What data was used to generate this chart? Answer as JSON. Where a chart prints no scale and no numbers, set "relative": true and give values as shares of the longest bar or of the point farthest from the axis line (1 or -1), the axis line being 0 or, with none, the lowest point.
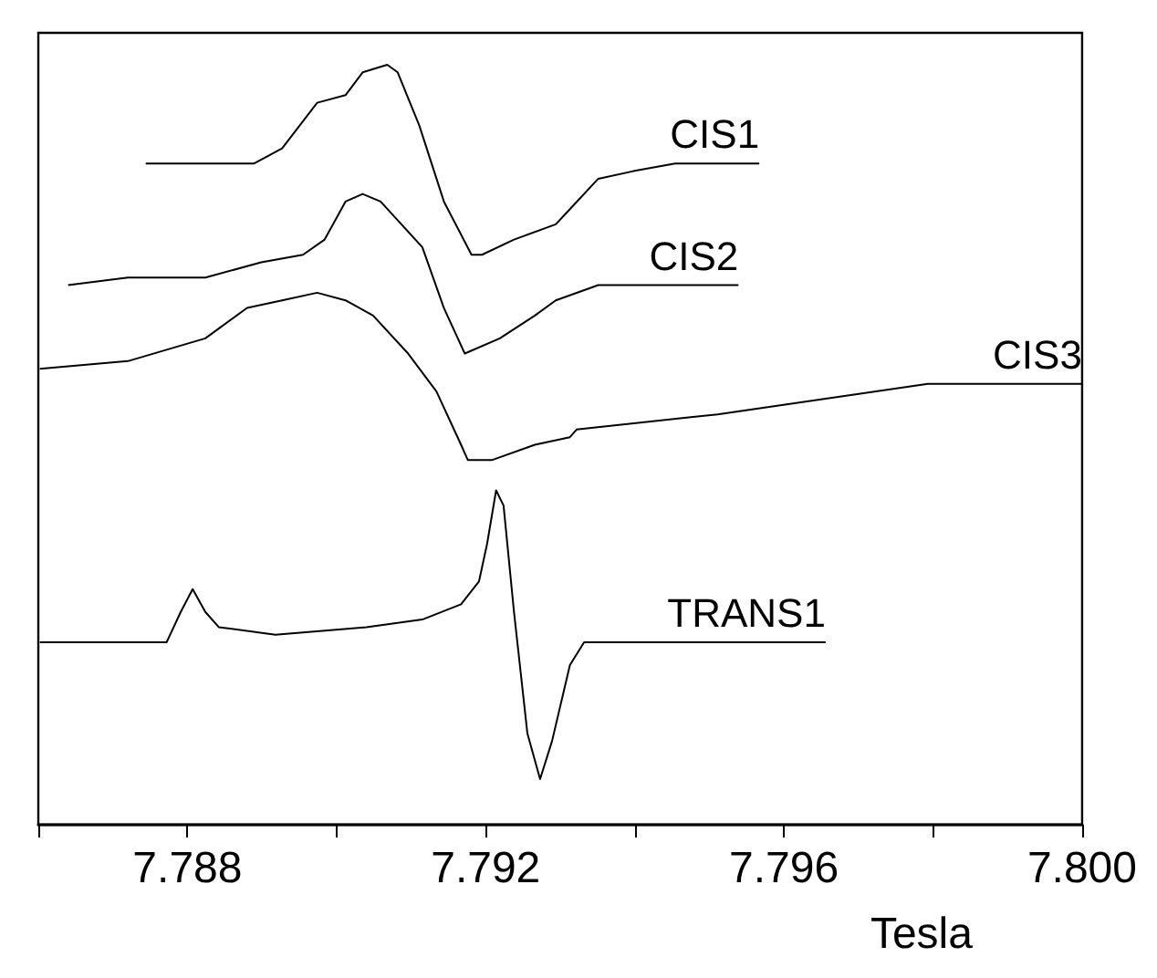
{
  "chart_data": {
    "type": "line",
    "xlabel": "Tesla",
    "relative": true,
    "legend": false,
    "marker": "none",
    "line_style": "solid",
    "grid": false,
    "xlim": [
      7.786,
      7.8
    ],
    "xticks": [
      {
        "value": 7.786,
        "label": null
      },
      7.788,
      {
        "value": 7.79,
        "label": null
      },
      7.792,
      {
        "value": 7.794,
        "label": null
      },
      7.796,
      {
        "value": 7.798,
        "label": null
      },
      {
        "value": 7.8,
        "label": "7.800"
      }
    ],
    "series": [
      {
        "name": "CIS1",
        "color": "#000000",
        "x": [
          7.78744,
          7.78889,
          7.78927,
          7.78974,
          7.79012,
          7.79035,
          7.79068,
          7.79082,
          7.79111,
          7.79144,
          7.79181,
          7.79195,
          7.79238,
          7.79294,
          7.79313,
          7.79351,
          7.79398,
          7.79454,
          7.79567
        ],
        "values": [
          0.87,
          0.87,
          0.89,
          0.95,
          0.96,
          0.99,
          1,
          0.99,
          0.92,
          0.82,
          0.75,
          0.75,
          0.77,
          0.79,
          0.81,
          0.85,
          0.86,
          0.87,
          0.87
        ]
      },
      {
        "name": "CIS2",
        "color": "#000000",
        "x": [
          7.7864,
          7.7872,
          7.78824,
          7.78899,
          7.78955,
          7.78984,
          7.79012,
          7.79035,
          7.79059,
          7.79087,
          7.79115,
          7.79144,
          7.79172,
          7.79219,
          7.79266,
          7.79294,
          7.79351,
          7.79416,
          7.79539
        ],
        "values": [
          0.71,
          0.72,
          0.72,
          0.74,
          0.75,
          0.77,
          0.82,
          0.83,
          0.82,
          0.79,
          0.76,
          0.68,
          0.62,
          0.64,
          0.67,
          0.69,
          0.71,
          0.71,
          0.71
        ]
      },
      {
        "name": "CIS3",
        "color": "#000000",
        "x": [
          7.78602,
          7.7872,
          7.78824,
          7.7888,
          7.78927,
          7.78974,
          7.79012,
          7.79049,
          7.79096,
          7.79134,
          7.79167,
          7.79176,
          7.79209,
          7.79266,
          7.79313,
          7.79322,
          7.79511,
          7.79652,
          7.79793,
          7.79925,
          7.8
        ],
        "values": [
          0.6,
          0.61,
          0.64,
          0.68,
          0.69,
          0.7,
          0.69,
          0.67,
          0.62,
          0.57,
          0.5,
          0.48,
          0.48,
          0.5,
          0.51,
          0.52,
          0.54,
          0.56,
          0.58,
          0.58,
          0.58
        ]
      },
      {
        "name": "TRANS1",
        "color": "#000000",
        "x": [
          7.78602,
          7.78772,
          7.78791,
          7.78807,
          7.78824,
          7.78842,
          7.78918,
          7.7904,
          7.79115,
          7.79167,
          7.79191,
          7.79202,
          7.79214,
          7.79224,
          7.79238,
          7.79256,
          7.79273,
          7.79289,
          7.79313,
          7.79332,
          7.79416,
          7.79656
        ],
        "values": [
          0.24,
          0.24,
          0.28,
          0.31,
          0.28,
          0.26,
          0.25,
          0.26,
          0.27,
          0.29,
          0.32,
          0.37,
          0.44,
          0.42,
          0.28,
          0.12,
          0.06,
          0.11,
          0.21,
          0.24,
          0.24,
          0.24
        ]
      }
    ]
  }
}
